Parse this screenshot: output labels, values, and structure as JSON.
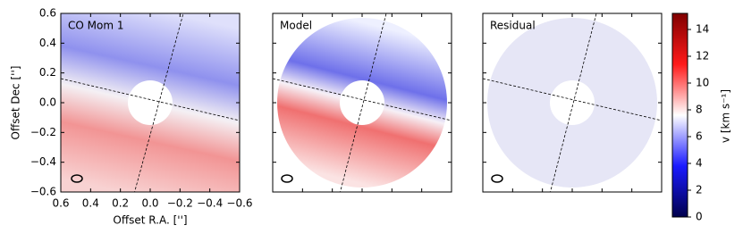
{
  "chart_data": {
    "type": "image",
    "panels": [
      {
        "title": "CO Mom 1"
      },
      {
        "title": "Model"
      },
      {
        "title": "Residual"
      }
    ],
    "xlabel": "Offset R.A. ['']",
    "ylabel": "Offset Dec ['']",
    "xlim": [
      0.6,
      -0.6
    ],
    "ylim": [
      -0.6,
      0.6
    ],
    "xticks": [
      0.6,
      0.4,
      0.2,
      {
        "value": 0,
        "label": "0.0"
      },
      {
        "value": -0.2,
        "label": "−0.2"
      },
      {
        "value": -0.4,
        "label": "−0.4"
      },
      {
        "value": -0.6,
        "label": "−0.6"
      }
    ],
    "yticks": [
      {
        "value": -0.6,
        "label": "−0.6"
      },
      {
        "value": -0.4,
        "label": "−0.4"
      },
      {
        "value": -0.2,
        "label": "−0.2"
      },
      {
        "value": 0,
        "label": "0.0"
      },
      0.2,
      0.4,
      0.6
    ],
    "colorbar": {
      "label": "v [km s⁻¹]",
      "lim": [
        0,
        15.2
      ],
      "ticks": [
        0,
        2,
        4,
        6,
        8,
        10,
        12,
        14
      ],
      "colormap": "seismic"
    }
  }
}
